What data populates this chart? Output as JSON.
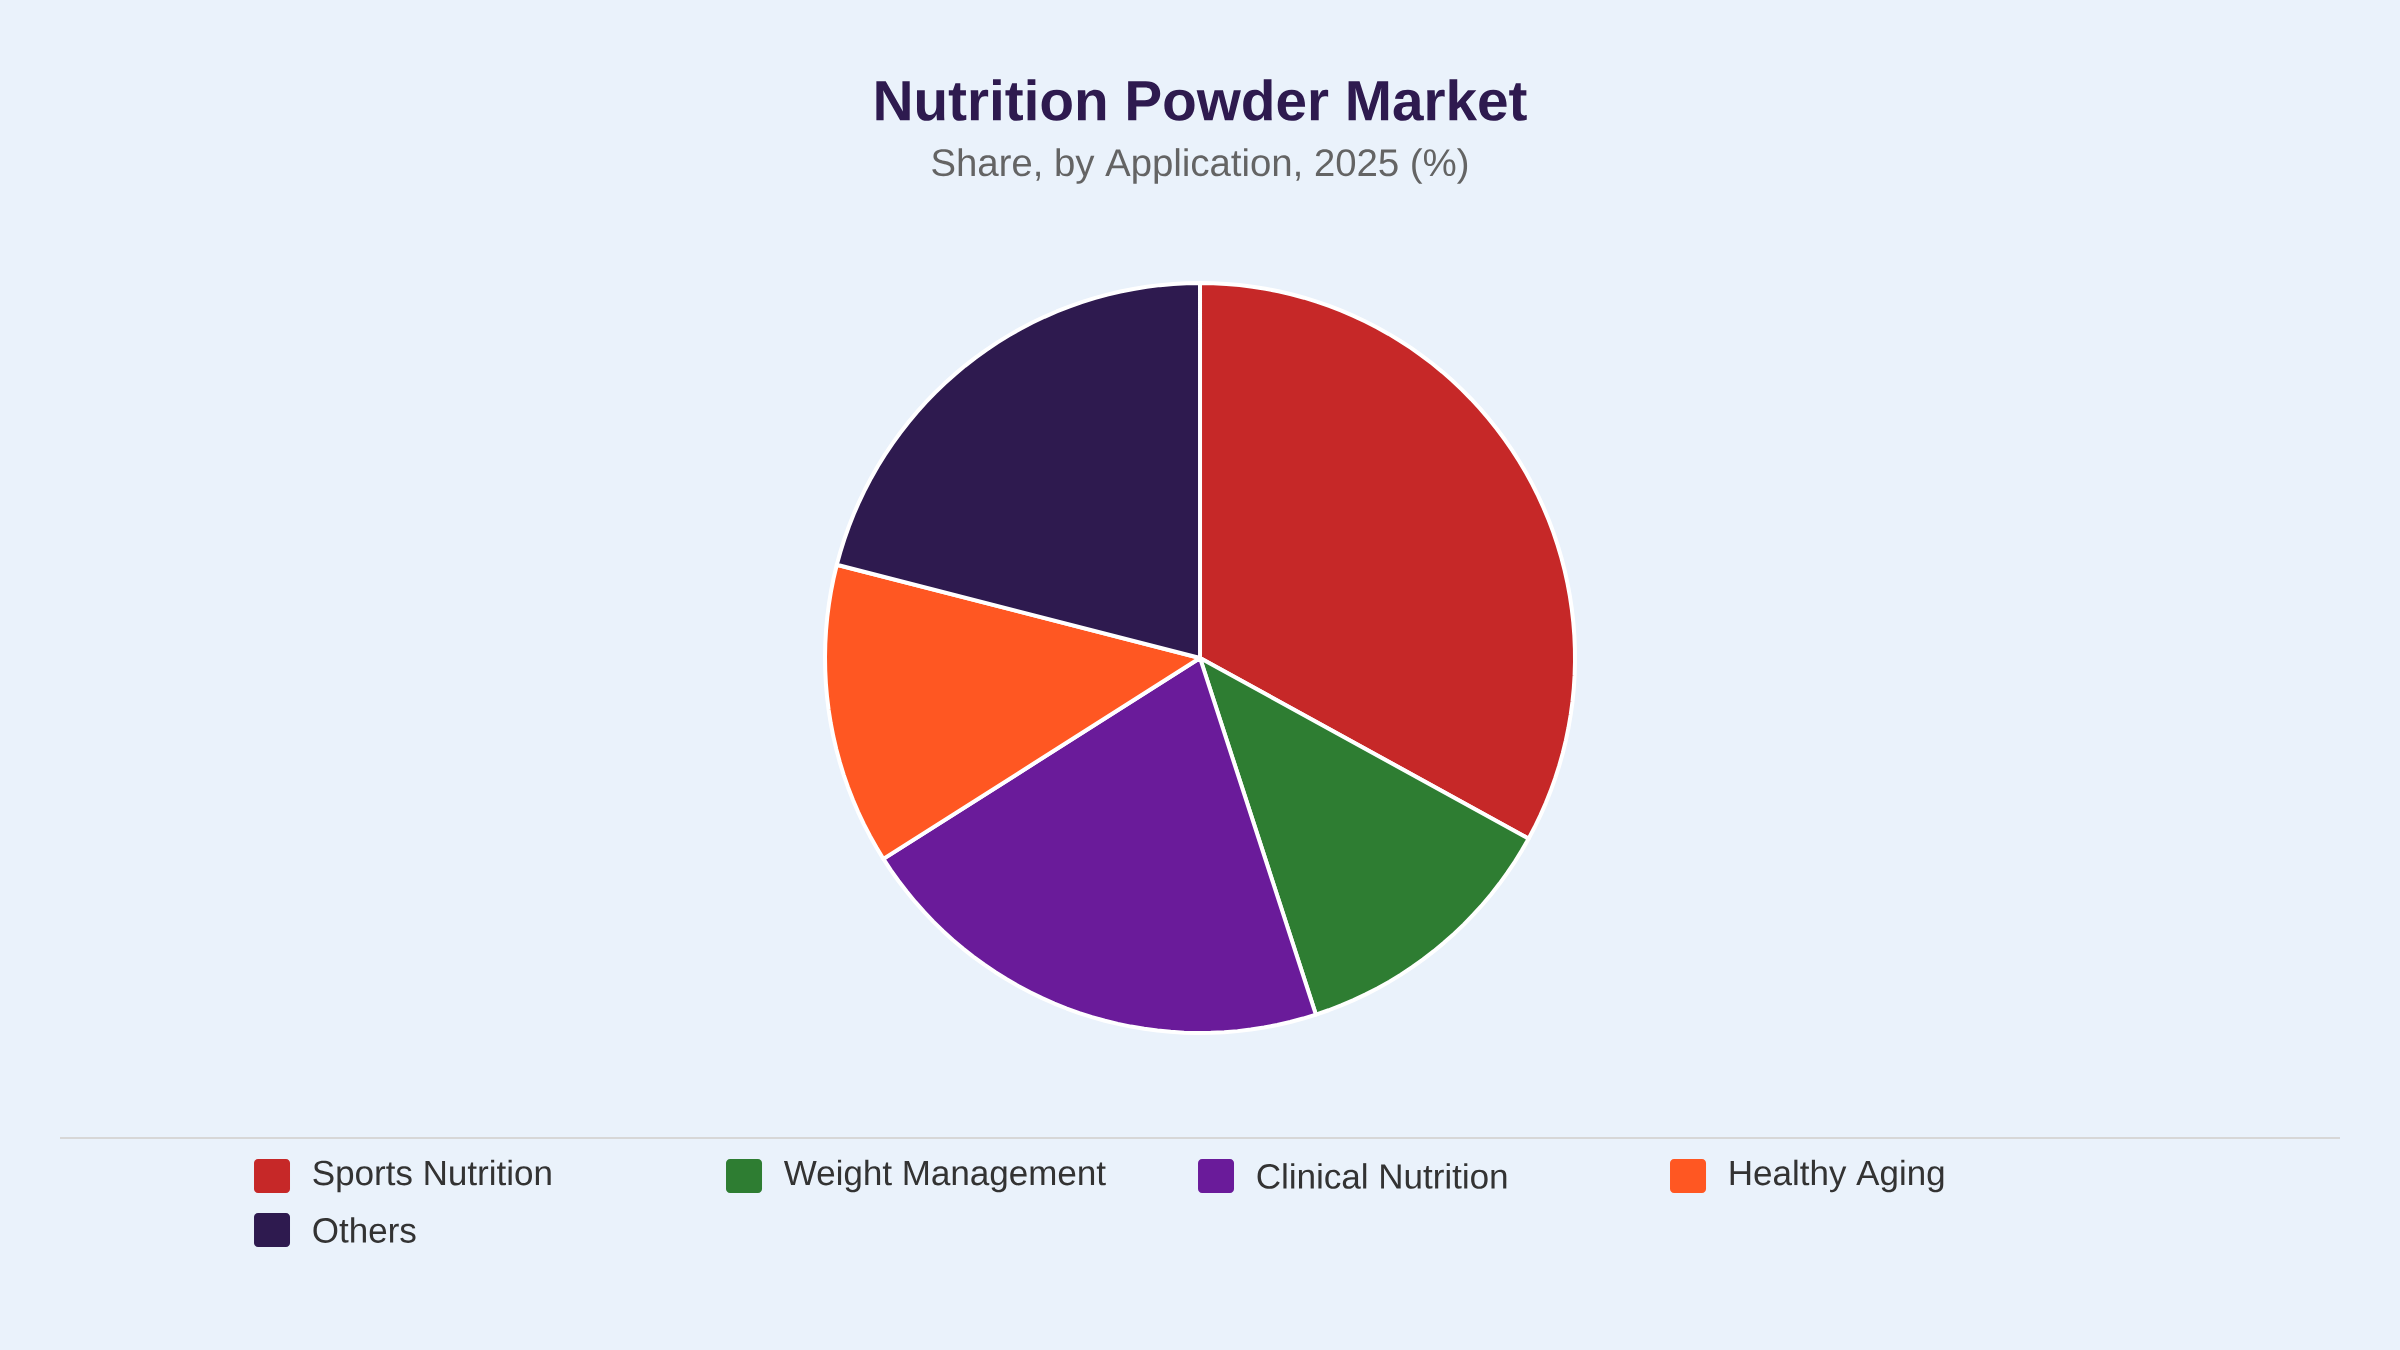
{
  "chart_data": {
    "type": "pie",
    "title": "Nutrition Powder Market",
    "subtitle": "Share, by Application, 2025 (%)",
    "categories": [
      "Sports Nutrition",
      "Weight Management",
      "Clinical Nutrition",
      "Healthy Aging",
      "Others"
    ],
    "values": [
      33,
      12,
      21,
      13,
      21
    ],
    "colors": [
      "#c62828",
      "#2e7d32",
      "#6a1b9a",
      "#ff5722",
      "#2e1a4f"
    ],
    "legend": "bottom"
  }
}
